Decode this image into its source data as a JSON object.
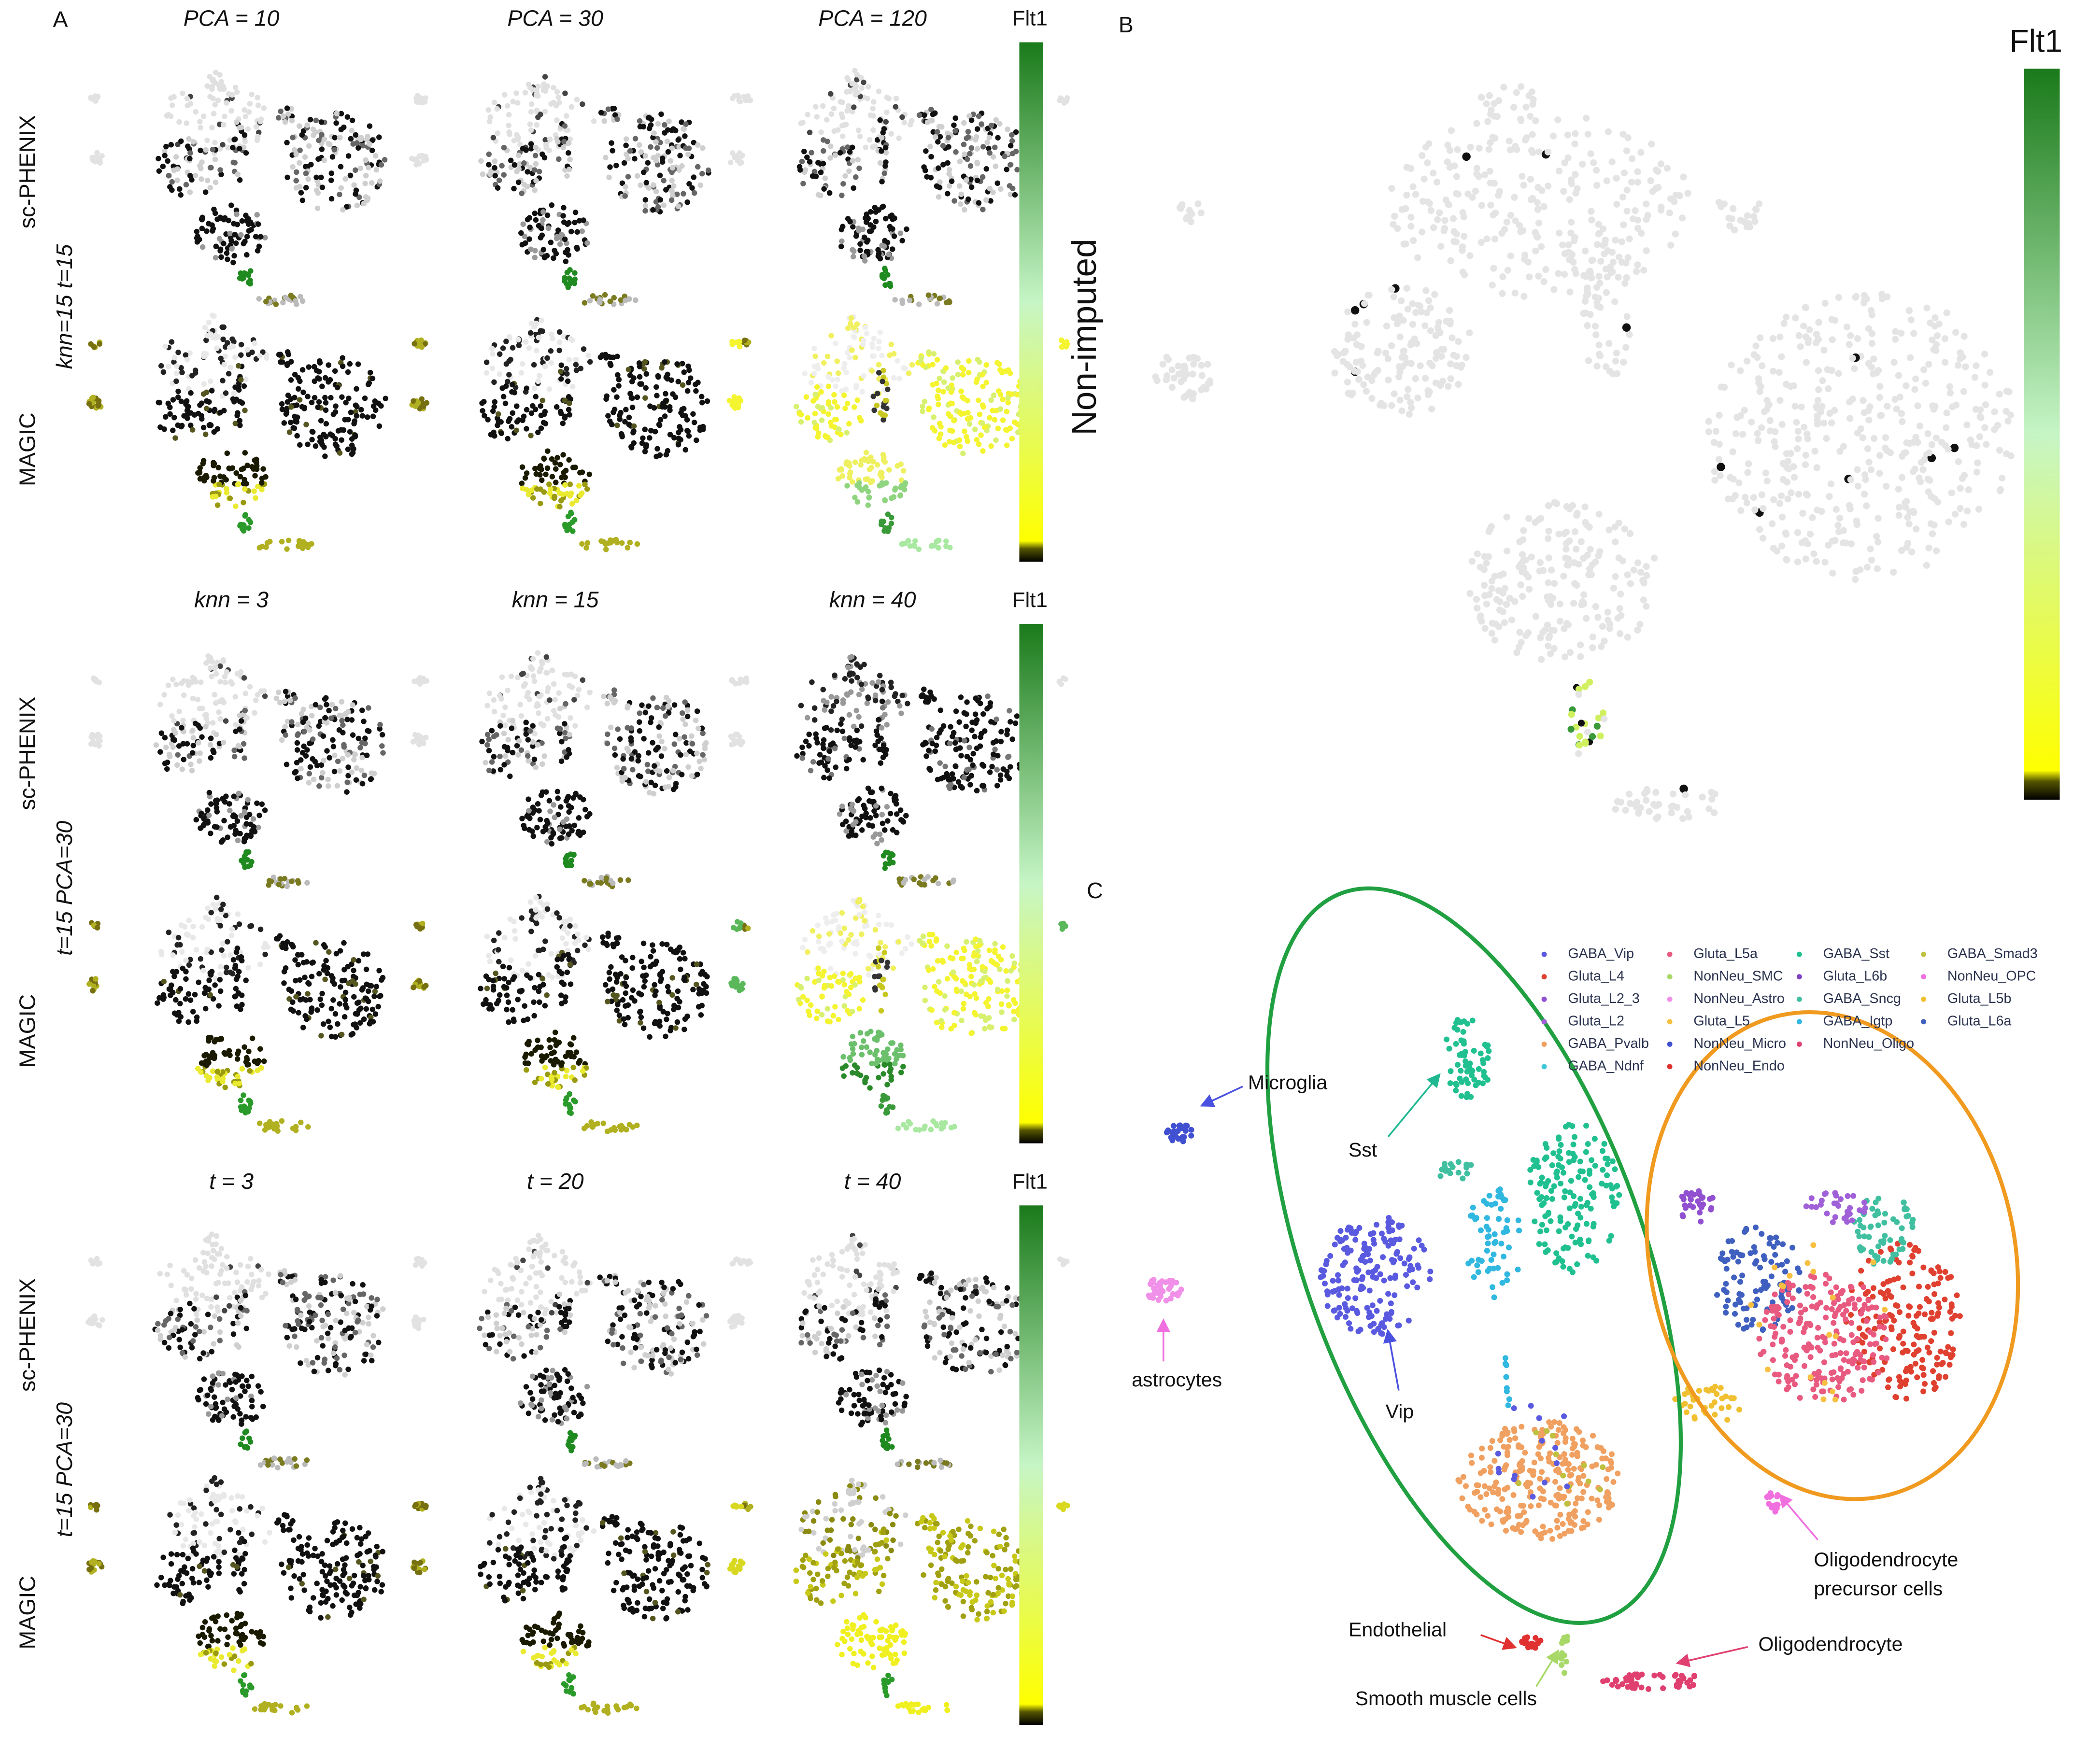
{
  "panel_a": {
    "label": "A",
    "blocks": [
      {
        "column_titles": [
          "PCA = 10",
          "PCA = 30",
          "PCA = 120"
        ],
        "parameters": "knn=15 t=15",
        "methods": [
          "sc-PHENIX",
          "MAGIC"
        ],
        "colorbar_title": "Flt1"
      },
      {
        "column_titles": [
          "knn = 3",
          "knn = 15",
          "knn = 40"
        ],
        "parameters": "t=15 PCA=30",
        "methods": [
          "sc-PHENIX",
          "MAGIC"
        ],
        "colorbar_title": "Flt1"
      },
      {
        "column_titles": [
          "t = 3",
          "t = 20",
          "t = 40"
        ],
        "parameters": "t=15 PCA=30",
        "methods": [
          "sc-PHENIX",
          "MAGIC"
        ],
        "colorbar_title": "Flt1"
      }
    ]
  },
  "panel_b": {
    "label": "B",
    "side_title": "Non-imputed",
    "colorbar_title": "Flt1"
  },
  "panel_c": {
    "label": "C",
    "legend": [
      {
        "name": "GABA_Vip",
        "color": "#5a5ae0"
      },
      {
        "name": "Gluta_L4",
        "color": "#e04030"
      },
      {
        "name": "Gluta_L2_3",
        "color": "#9050d0"
      },
      {
        "name": "Gluta_L2",
        "color": "#a060d8"
      },
      {
        "name": "GABA_Pvalb",
        "color": "#f0a060"
      },
      {
        "name": "GABA_Ndnf",
        "color": "#40c8d8"
      },
      {
        "name": "Gluta_L5a",
        "color": "#e85a80"
      },
      {
        "name": "NonNeu_SMC",
        "color": "#a8d868"
      },
      {
        "name": "NonNeu_Astro",
        "color": "#f090e8"
      },
      {
        "name": "Gluta_L5",
        "color": "#f8c040"
      },
      {
        "name": "NonNeu_Micro",
        "color": "#4050d0"
      },
      {
        "name": "NonNeu_Endo",
        "color": "#e03030"
      },
      {
        "name": "GABA_Sst",
        "color": "#20c090"
      },
      {
        "name": "Gluta_L6b",
        "color": "#8040c0"
      },
      {
        "name": "GABA_Sncg",
        "color": "#40c0a0"
      },
      {
        "name": "GABA_Igtp",
        "color": "#30b8e0"
      },
      {
        "name": "NonNeu_Oligo",
        "color": "#e04070"
      },
      {
        "name": "GABA_Smad3",
        "color": "#c0c040"
      },
      {
        "name": "NonNeu_OPC",
        "color": "#f070e0"
      },
      {
        "name": "Gluta_L5b",
        "color": "#f0c030"
      },
      {
        "name": "Gluta_L6a",
        "color": "#4060c0"
      }
    ],
    "annotations": [
      [
        "Microglia"
      ],
      [
        "astrocytes"
      ],
      [
        "Sst"
      ],
      [
        "Vip"
      ],
      [
        "Endothelial"
      ],
      [
        "Smooth muscle cells"
      ],
      [
        "Oligodendrocyte"
      ],
      [
        "Oligodendrocyte",
        "precursor cells"
      ]
    ]
  }
}
